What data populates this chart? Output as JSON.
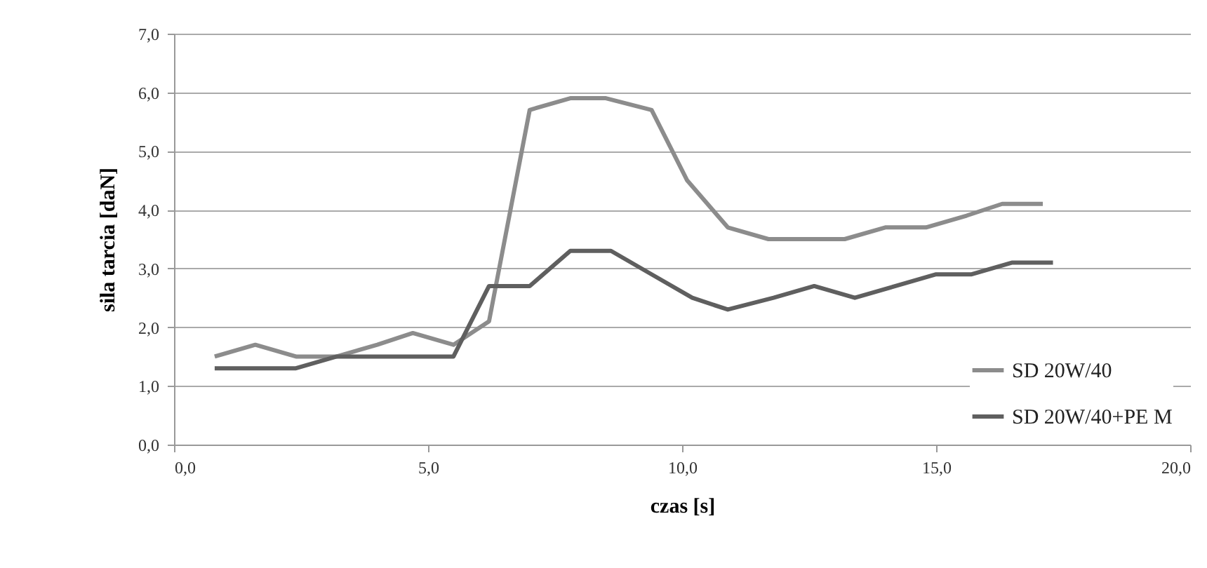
{
  "chart_data": {
    "type": "line",
    "xlabel": "czas [s]",
    "ylabel": "sila tarcia [daN]",
    "series": [
      {
        "name": "SD 20W/40",
        "color": "#8c8c8c",
        "x": [
          0.8,
          1.6,
          2.4,
          3.2,
          4.0,
          4.7,
          5.5,
          6.2,
          7.0,
          7.8,
          8.5,
          9.4,
          10.1,
          10.9,
          11.7,
          12.5,
          13.2,
          14.0,
          14.8,
          15.6,
          16.3,
          17.1
        ],
        "values": [
          1.5,
          1.7,
          1.5,
          1.5,
          1.7,
          1.9,
          1.7,
          2.1,
          5.7,
          5.9,
          5.9,
          5.7,
          4.5,
          3.7,
          3.5,
          3.5,
          3.5,
          3.7,
          3.7,
          3.9,
          4.1,
          4.1
        ]
      },
      {
        "name": "SD 20W/40+PE M",
        "color": "#5f5f5f",
        "x": [
          0.8,
          1.6,
          2.4,
          3.2,
          4.0,
          4.7,
          5.5,
          6.2,
          7.0,
          7.8,
          8.6,
          9.4,
          10.2,
          10.9,
          11.8,
          12.6,
          13.4,
          14.2,
          15.0,
          15.7,
          16.5,
          17.3
        ],
        "values": [
          1.3,
          1.3,
          1.3,
          1.5,
          1.5,
          1.5,
          1.5,
          2.7,
          2.7,
          3.3,
          3.3,
          2.9,
          2.5,
          2.3,
          2.5,
          2.7,
          2.5,
          2.7,
          2.9,
          2.9,
          3.1,
          3.1
        ]
      }
    ],
    "xlim": [
      0,
      20
    ],
    "xticks": [
      {
        "value": 0,
        "label": "0,0"
      },
      {
        "value": 5,
        "label": "5,0"
      },
      {
        "value": 10,
        "label": "10,0"
      },
      {
        "value": 15,
        "label": "15,0"
      },
      {
        "value": 20,
        "label": "20,0"
      }
    ],
    "ylim": [
      0,
      7
    ],
    "yticks": [
      {
        "value": 0,
        "label": "0,0"
      },
      {
        "value": 1,
        "label": "1,0"
      },
      {
        "value": 2,
        "label": "2,0"
      },
      {
        "value": 3,
        "label": "3,0"
      },
      {
        "value": 4,
        "label": "4,0"
      },
      {
        "value": 5,
        "label": "5,0"
      },
      {
        "value": 6,
        "label": "6,0"
      },
      {
        "value": 7,
        "label": "7,0"
      }
    ],
    "grid": "y",
    "legend": "bottom right",
    "marker": "none",
    "line_style": "solid"
  }
}
